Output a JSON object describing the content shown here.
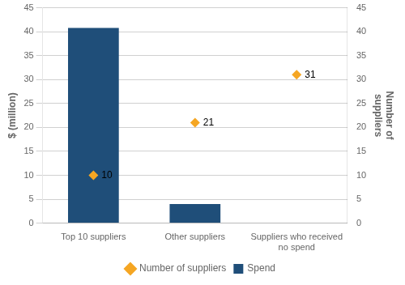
{
  "chart_data": {
    "type": "bar",
    "categories": [
      "Top 10 suppliers",
      "Other suppliers",
      "Suppliers who received\nno spend"
    ],
    "series": [
      {
        "name": "Spend",
        "type": "bar",
        "color": "#1f4e79",
        "values": [
          40.8,
          4.0,
          0
        ]
      },
      {
        "name": "Number of suppliers",
        "type": "scatter",
        "color": "#f5a623",
        "marker": "diamond",
        "axis": "y2",
        "data_labels": true,
        "values": [
          10,
          21,
          31
        ]
      }
    ],
    "ylabel": "$ (million)",
    "y2label": "Number of\nsuppliers",
    "ylim": [
      0,
      45
    ],
    "yticks": [
      0,
      5,
      10,
      15,
      20,
      25,
      30,
      35,
      40,
      45
    ],
    "y2lim": [
      0,
      45
    ],
    "y2ticks": [
      0,
      5,
      10,
      15,
      20,
      25,
      30,
      35,
      40,
      45
    ],
    "grid": true,
    "legend": "bottom"
  }
}
